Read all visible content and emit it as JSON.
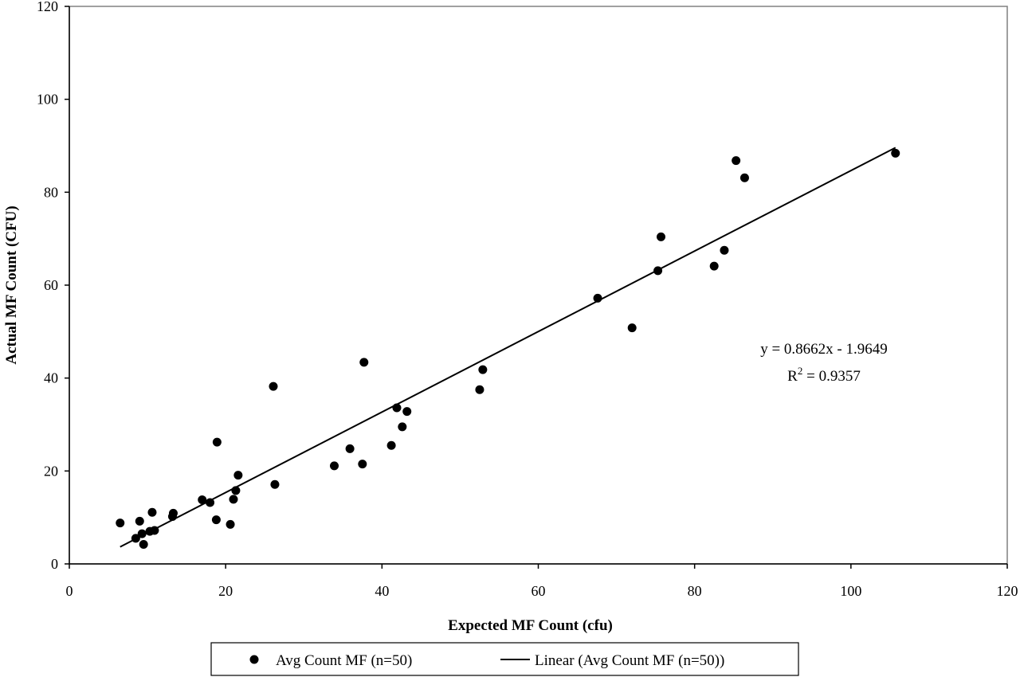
{
  "chart_data": {
    "type": "scatter",
    "xlabel": "Expected MF Count (cfu)",
    "ylabel": "Actual MF Count (CFU)",
    "xlim": [
      0,
      120
    ],
    "ylim": [
      0,
      120
    ],
    "xticks": [
      0,
      20,
      40,
      60,
      80,
      100,
      120
    ],
    "yticks": [
      0,
      20,
      40,
      60,
      80,
      100,
      120
    ],
    "grid": false,
    "legend_position": "bottom",
    "series": [
      {
        "name": "Avg Count MF (n=50)",
        "kind": "scatter",
        "color": "#000000",
        "points": [
          [
            6.5,
            8.8
          ],
          [
            8.5,
            5.5
          ],
          [
            9.0,
            9.2
          ],
          [
            9.3,
            6.5
          ],
          [
            9.5,
            4.2
          ],
          [
            10.3,
            7.0
          ],
          [
            10.6,
            11.1
          ],
          [
            10.9,
            7.2
          ],
          [
            13.2,
            10.2
          ],
          [
            13.3,
            10.9
          ],
          [
            17.0,
            13.8
          ],
          [
            18.0,
            13.2
          ],
          [
            18.8,
            9.5
          ],
          [
            18.9,
            26.2
          ],
          [
            20.6,
            8.5
          ],
          [
            21.0,
            13.9
          ],
          [
            21.3,
            15.8
          ],
          [
            21.6,
            19.1
          ],
          [
            26.1,
            38.2
          ],
          [
            26.3,
            17.1
          ],
          [
            33.9,
            21.1
          ],
          [
            35.9,
            24.8
          ],
          [
            37.5,
            21.5
          ],
          [
            37.7,
            43.4
          ],
          [
            41.2,
            25.5
          ],
          [
            41.9,
            33.6
          ],
          [
            42.6,
            29.5
          ],
          [
            43.2,
            32.8
          ],
          [
            52.5,
            37.5
          ],
          [
            52.9,
            41.8
          ],
          [
            67.6,
            57.2
          ],
          [
            72.0,
            50.8
          ],
          [
            75.3,
            63.1
          ],
          [
            75.7,
            70.4
          ],
          [
            82.5,
            64.1
          ],
          [
            83.8,
            67.5
          ],
          [
            85.3,
            86.8
          ],
          [
            86.4,
            83.1
          ],
          [
            105.7,
            88.4
          ]
        ]
      },
      {
        "name": "Linear (Avg Count MF (n=50))",
        "kind": "line",
        "color": "#000000",
        "slope": 0.8662,
        "intercept": -1.9649,
        "x_range": [
          6.5,
          105.7
        ]
      }
    ],
    "annotations": {
      "equation": "y = 0.8662x - 1.9649",
      "r2_prefix": "R",
      "r2_sup": "2",
      "r2_suffix": " = 0.9357"
    }
  }
}
